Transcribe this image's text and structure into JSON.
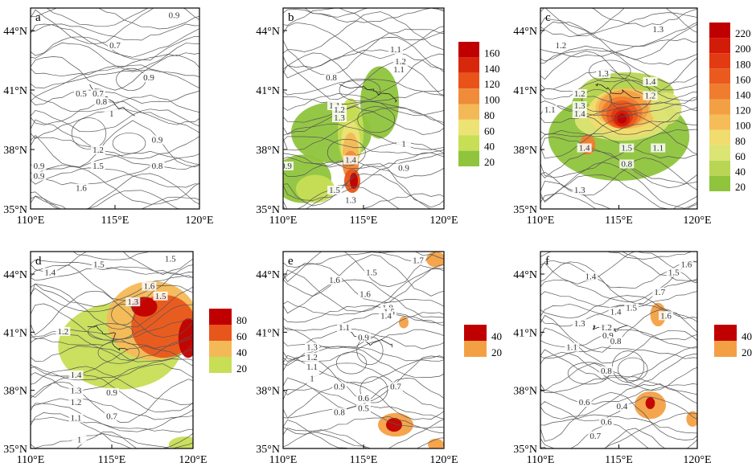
{
  "panels": [
    {
      "id": "a",
      "x_ticks": [
        "110°E",
        "115°E",
        "120°E"
      ],
      "y_ticks": [
        "44°N",
        "41°N",
        "38°N",
        "35°N"
      ],
      "contour_labels": [
        "0.9",
        "0.7",
        "0.5",
        "0.9",
        "0.7",
        "0.8",
        "1",
        "1.2",
        "1.5",
        "1.6",
        "0.9",
        "0.8",
        "0.9",
        "0.9"
      ],
      "colorbar": null
    },
    {
      "id": "b",
      "x_ticks": [
        "110°E",
        "115°E",
        "120°E"
      ],
      "y_ticks": [
        "44°N",
        "41°N",
        "38°N",
        "35°N"
      ],
      "contour_labels": [
        "1.1",
        "1.2",
        "1.1",
        "0.8",
        "1.1",
        "1.2",
        "1.3",
        "1.4",
        "1.5",
        "1.3",
        "0.9",
        "1",
        "0.9"
      ],
      "colorbar": {
        "levels": [
          "160",
          "140",
          "120",
          "100",
          "80",
          "60",
          "40",
          "20"
        ],
        "colors": [
          "#c00000",
          "#d8280c",
          "#e9531a",
          "#f08b3a",
          "#f4b957",
          "#ece374",
          "#c7de55",
          "#8fc43c"
        ]
      }
    },
    {
      "id": "c",
      "x_ticks": [
        "110°E",
        "115°E",
        "120°E"
      ],
      "y_ticks": [
        "44°N",
        "41°N",
        "38°N",
        "35°N"
      ],
      "contour_labels": [
        "1.2",
        "1.3",
        "1.3",
        "1.4",
        "1.2",
        "1.1",
        "1.2",
        "1.3",
        "1.4",
        "1.5",
        "1.1",
        "0.8",
        "1.4",
        "1.3"
      ],
      "colorbar": {
        "levels": [
          "220",
          "200",
          "180",
          "160",
          "140",
          "120",
          "100",
          "80",
          "60",
          "40",
          "20"
        ],
        "colors": [
          "#c00000",
          "#d31c08",
          "#e23a12",
          "#ea5a1e",
          "#f07d2f",
          "#f3a044",
          "#f4bd58",
          "#f1dc6e",
          "#dce474",
          "#b8d653",
          "#8fc43c"
        ]
      }
    },
    {
      "id": "d",
      "x_ticks": [
        "110°E",
        "115°E",
        "120°E"
      ],
      "y_ticks": [
        "44°N",
        "41°N",
        "38°N",
        "35°N"
      ],
      "contour_labels": [
        "1.4",
        "1.5",
        "1.5",
        "1.6",
        "1.5",
        "1.2",
        "1.3",
        "1.4",
        "1.3",
        "1.2",
        "1.1",
        "0.9",
        "0.7",
        "1"
      ],
      "colorbar": {
        "levels": [
          "80",
          "60",
          "40",
          "20"
        ],
        "colors": [
          "#c00000",
          "#e8561c",
          "#f4b957",
          "#c7de55"
        ]
      }
    },
    {
      "id": "e",
      "x_ticks": [
        "110°E",
        "115°E",
        "120°E"
      ],
      "y_ticks": [
        "44°N",
        "41°N",
        "38°N",
        "35°N"
      ],
      "contour_labels": [
        "1.7",
        "1.6",
        "1.5",
        "1.6",
        "1.8",
        "1.5",
        "1.4",
        "1.1",
        "0.9",
        "1.3",
        "1.2",
        "1.1",
        "1",
        "0.9",
        "0.8",
        "0.7",
        "0.6",
        "0.5"
      ],
      "colorbar": {
        "levels": [
          "40",
          "20"
        ],
        "colors": [
          "#c00000",
          "#f3a044"
        ]
      }
    },
    {
      "id": "f",
      "x_ticks": [
        "110°E",
        "115°E",
        "120°E"
      ],
      "y_ticks": [
        "44°N",
        "41°N",
        "38°N",
        "35°N"
      ],
      "contour_labels": [
        "1.5",
        "1.6",
        "1.4",
        "1.7",
        "1.6",
        "1.5",
        "1.4",
        "1.3",
        "1.2",
        "0.9",
        "0.8",
        "1.1",
        "0.8",
        "0.6",
        "0.4",
        "0.6",
        "0.7"
      ],
      "colorbar": {
        "levels": [
          "40",
          "20"
        ],
        "colors": [
          "#c00000",
          "#f3a044"
        ]
      }
    }
  ]
}
